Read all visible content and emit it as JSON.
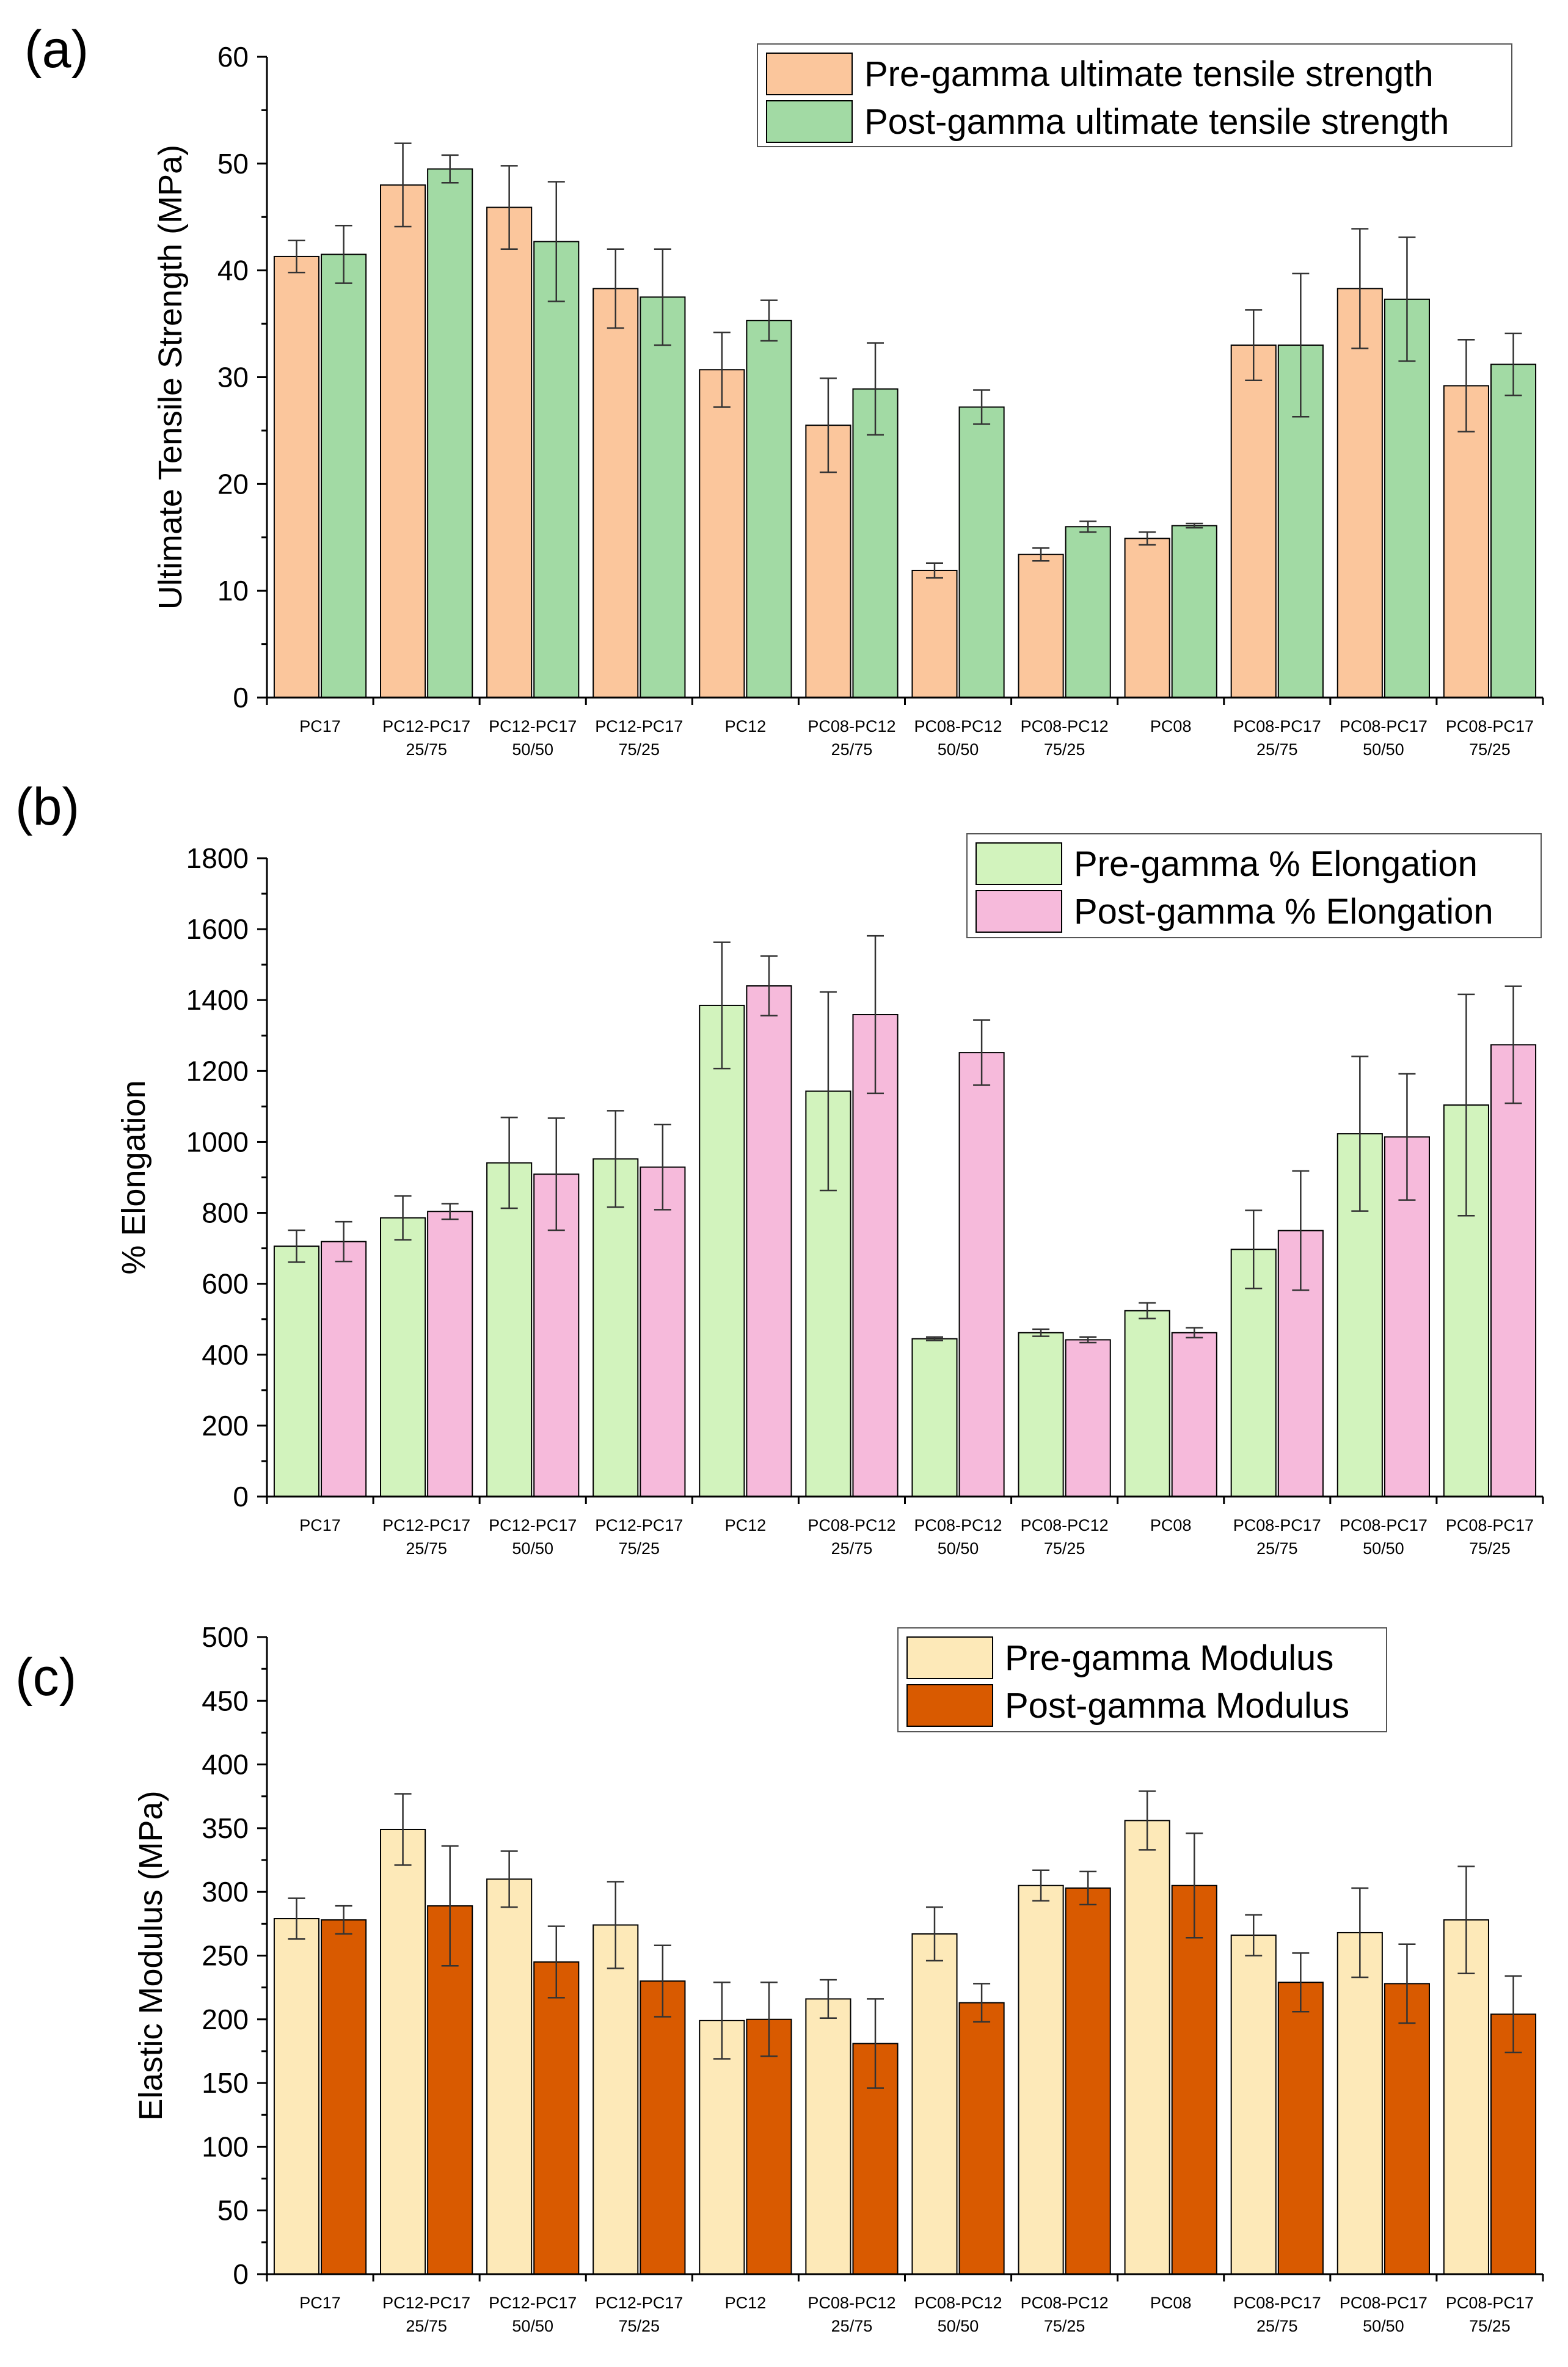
{
  "chart_data": [
    {
      "type": "bar",
      "panel_label": "(a)",
      "title": "",
      "xlabel": "",
      "ylabel": "Ultimate Tensile Strength (MPa)",
      "ylim": [
        0,
        60
      ],
      "yticks": [
        "0",
        "10",
        "20",
        "30",
        "40",
        "50",
        "60"
      ],
      "categories": [
        [
          "PC17",
          ""
        ],
        [
          "PC12-PC17",
          "25/75"
        ],
        [
          "PC12-PC17",
          "50/50"
        ],
        [
          "PC12-PC17",
          "75/25"
        ],
        [
          "PC12",
          ""
        ],
        [
          "PC08-PC12",
          "25/75"
        ],
        [
          "PC08-PC12",
          "50/50"
        ],
        [
          "PC08-PC12",
          "75/25"
        ],
        [
          "PC08",
          ""
        ],
        [
          "PC08-PC17",
          "25/75"
        ],
        [
          "PC08-PC17",
          "50/50"
        ],
        [
          "PC08-PC17",
          "75/25"
        ]
      ],
      "legend_position": "top-right",
      "series": [
        {
          "name": "Pre-gamma ultimate tensile strength",
          "color": "#FBC69C",
          "values": [
            41.3,
            48.0,
            45.9,
            38.3,
            30.7,
            25.5,
            11.9,
            13.4,
            14.9,
            33.0,
            38.3,
            29.2
          ],
          "errors": [
            1.5,
            3.9,
            3.9,
            3.7,
            3.5,
            4.4,
            0.7,
            0.6,
            0.6,
            3.3,
            5.6,
            4.3
          ]
        },
        {
          "name": "Post-gamma ultimate tensile strength",
          "color": "#A2DAA4",
          "values": [
            41.5,
            49.5,
            42.7,
            37.5,
            35.3,
            28.9,
            27.2,
            16.0,
            16.1,
            33.0,
            37.3,
            31.2
          ],
          "errors": [
            2.7,
            1.3,
            5.6,
            4.5,
            1.9,
            4.3,
            1.6,
            0.5,
            0.2,
            6.7,
            5.8,
            2.9
          ]
        }
      ]
    },
    {
      "type": "bar",
      "panel_label": "(b)",
      "title": "",
      "xlabel": "",
      "ylabel": "% Elongation",
      "ylim": [
        0,
        1800
      ],
      "yticks": [
        "0",
        "200",
        "400",
        "600",
        "800",
        "1000",
        "1200",
        "1400",
        "1600",
        "1800"
      ],
      "categories": [
        [
          "PC17",
          ""
        ],
        [
          "PC12-PC17",
          "25/75"
        ],
        [
          "PC12-PC17",
          "50/50"
        ],
        [
          "PC12-PC17",
          "75/25"
        ],
        [
          "PC12",
          ""
        ],
        [
          "PC08-PC12",
          "25/75"
        ],
        [
          "PC08-PC12",
          "50/50"
        ],
        [
          "PC08-PC12",
          "75/25"
        ],
        [
          "PC08",
          ""
        ],
        [
          "PC08-PC17",
          "25/75"
        ],
        [
          "PC08-PC17",
          "50/50"
        ],
        [
          "PC08-PC17",
          "75/25"
        ]
      ],
      "legend_position": "top-right",
      "series": [
        {
          "name": "Pre-gamma % Elongation",
          "color": "#D2F3BD",
          "values": [
            706,
            786,
            941,
            952,
            1385,
            1143,
            445,
            462,
            524,
            697,
            1023,
            1104
          ],
          "errors": [
            45,
            62,
            128,
            136,
            178,
            280,
            5,
            10,
            22,
            110,
            218,
            312
          ]
        },
        {
          "name": "Post-gamma % Elongation",
          "color": "#F6BADB",
          "values": [
            719,
            804,
            909,
            929,
            1440,
            1359,
            1252,
            442,
            462,
            750,
            1014,
            1274
          ],
          "errors": [
            56,
            22,
            158,
            120,
            84,
            222,
            92,
            8,
            14,
            168,
            178,
            165
          ]
        }
      ]
    },
    {
      "type": "bar",
      "panel_label": "(c)",
      "title": "",
      "xlabel": "",
      "ylabel": "Elastic Modulus (MPa)",
      "ylim": [
        0,
        500
      ],
      "yticks": [
        "0",
        "50",
        "100",
        "150",
        "200",
        "250",
        "300",
        "350",
        "400",
        "450",
        "500"
      ],
      "categories": [
        [
          "PC17",
          ""
        ],
        [
          "PC12-PC17",
          "25/75"
        ],
        [
          "PC12-PC17",
          "50/50"
        ],
        [
          "PC12-PC17",
          "75/25"
        ],
        [
          "PC12",
          ""
        ],
        [
          "PC08-PC12",
          "25/75"
        ],
        [
          "PC08-PC12",
          "50/50"
        ],
        [
          "PC08-PC12",
          "75/25"
        ],
        [
          "PC08",
          ""
        ],
        [
          "PC08-PC17",
          "25/75"
        ],
        [
          "PC08-PC17",
          "50/50"
        ],
        [
          "PC08-PC17",
          "75/25"
        ]
      ],
      "legend_position": "top-right",
      "series": [
        {
          "name": "Pre-gamma Modulus",
          "color": "#FDE9B8",
          "values": [
            279,
            349,
            310,
            274,
            199,
            216,
            267,
            305,
            356,
            266,
            268,
            278
          ],
          "errors": [
            16,
            28,
            22,
            34,
            30,
            15,
            21,
            12,
            23,
            16,
            35,
            42
          ]
        },
        {
          "name": "Post-gamma Modulus",
          "color": "#D95A00",
          "values": [
            278,
            289,
            245,
            230,
            200,
            181,
            213,
            303,
            305,
            229,
            228,
            204
          ],
          "errors": [
            11,
            47,
            28,
            28,
            29,
            35,
            15,
            13,
            41,
            23,
            31,
            30
          ]
        }
      ]
    }
  ]
}
